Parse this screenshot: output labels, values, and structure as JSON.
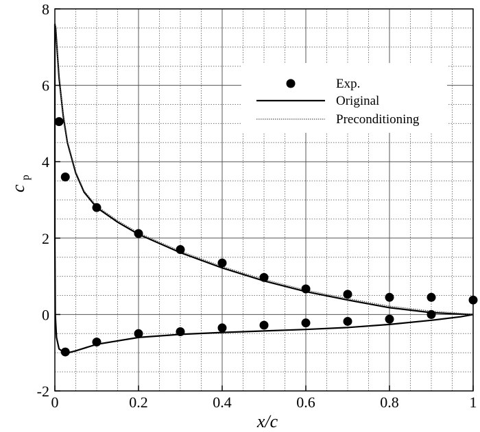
{
  "chart_data": {
    "type": "line",
    "xlabel": "x/c",
    "ylabel": "c",
    "ylabel_subscript": "p",
    "xlim": [
      0,
      1
    ],
    "ylim": [
      -2,
      8
    ],
    "xticks": [
      "0",
      "0.2",
      "0.4",
      "0.6",
      "0.8",
      "1"
    ],
    "xtick_values": [
      0,
      0.2,
      0.4,
      0.6,
      0.8,
      1
    ],
    "yticks": [
      "-2",
      "0",
      "2",
      "4",
      "6",
      "8"
    ],
    "ytick_values": [
      -2,
      0,
      2,
      4,
      6,
      8
    ],
    "grid": "major solid, minor dotted",
    "legend_position": "top-right",
    "series": [
      {
        "name": "Exp.",
        "kind": "markers",
        "color": "#000000",
        "points": [
          [
            0.01,
            5.05
          ],
          [
            0.025,
            3.6
          ],
          [
            0.1,
            2.8
          ],
          [
            0.2,
            2.12
          ],
          [
            0.3,
            1.7
          ],
          [
            0.4,
            1.35
          ],
          [
            0.5,
            0.97
          ],
          [
            0.6,
            0.67
          ],
          [
            0.7,
            0.53
          ],
          [
            0.8,
            0.45
          ],
          [
            0.9,
            0.45
          ],
          [
            1.0,
            0.38
          ],
          [
            0.025,
            -0.98
          ],
          [
            0.1,
            -0.72
          ],
          [
            0.2,
            -0.5
          ],
          [
            0.3,
            -0.45
          ],
          [
            0.4,
            -0.35
          ],
          [
            0.5,
            -0.28
          ],
          [
            0.6,
            -0.22
          ],
          [
            0.7,
            -0.18
          ],
          [
            0.8,
            -0.12
          ],
          [
            0.9,
            0.0
          ]
        ]
      },
      {
        "name": "Original",
        "kind": "solid",
        "color": "#000000",
        "points": [
          [
            1.0,
            0.0
          ],
          [
            0.95,
            0.02
          ],
          [
            0.9,
            0.05
          ],
          [
            0.8,
            0.18
          ],
          [
            0.7,
            0.38
          ],
          [
            0.6,
            0.6
          ],
          [
            0.5,
            0.88
          ],
          [
            0.4,
            1.22
          ],
          [
            0.3,
            1.62
          ],
          [
            0.2,
            2.1
          ],
          [
            0.15,
            2.42
          ],
          [
            0.1,
            2.8
          ],
          [
            0.07,
            3.2
          ],
          [
            0.05,
            3.7
          ],
          [
            0.03,
            4.5
          ],
          [
            0.02,
            5.2
          ],
          [
            0.01,
            6.2
          ],
          [
            0.005,
            7.0
          ],
          [
            0.002,
            7.5
          ],
          [
            0.0,
            7.6
          ],
          [
            0.0,
            2.0
          ],
          [
            0.001,
            0.0
          ],
          [
            0.004,
            -0.6
          ],
          [
            0.01,
            -0.9
          ],
          [
            0.025,
            -1.02
          ],
          [
            0.05,
            -0.95
          ],
          [
            0.1,
            -0.78
          ],
          [
            0.2,
            -0.6
          ],
          [
            0.3,
            -0.52
          ],
          [
            0.4,
            -0.47
          ],
          [
            0.5,
            -0.43
          ],
          [
            0.6,
            -0.39
          ],
          [
            0.7,
            -0.34
          ],
          [
            0.8,
            -0.26
          ],
          [
            0.9,
            -0.15
          ],
          [
            0.97,
            -0.06
          ],
          [
            1.0,
            0.0
          ]
        ]
      },
      {
        "name": "Preconditioning",
        "kind": "dotted",
        "color": "#555555",
        "points": [
          [
            1.0,
            0.0
          ],
          [
            0.95,
            0.05
          ],
          [
            0.9,
            0.09
          ],
          [
            0.8,
            0.22
          ],
          [
            0.7,
            0.42
          ],
          [
            0.6,
            0.64
          ],
          [
            0.5,
            0.92
          ],
          [
            0.4,
            1.26
          ],
          [
            0.3,
            1.66
          ],
          [
            0.2,
            2.14
          ],
          [
            0.15,
            2.46
          ],
          [
            0.1,
            2.84
          ],
          [
            0.07,
            3.24
          ],
          [
            0.05,
            3.74
          ],
          [
            0.03,
            4.54
          ],
          [
            0.02,
            5.24
          ],
          [
            0.01,
            6.24
          ],
          [
            0.005,
            7.04
          ],
          [
            0.002,
            7.54
          ],
          [
            0.0,
            7.64
          ]
        ]
      }
    ]
  }
}
